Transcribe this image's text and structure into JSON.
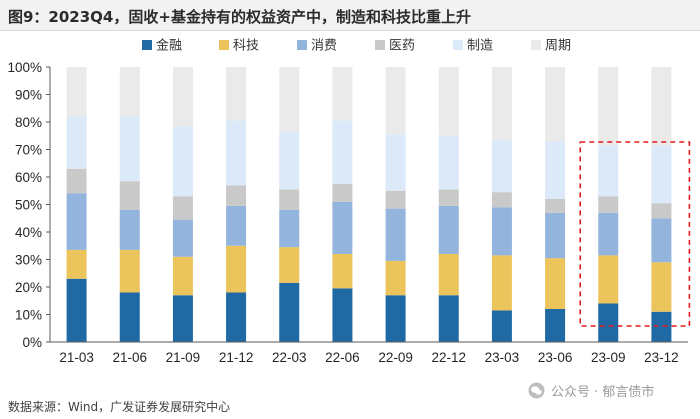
{
  "figure": {
    "title": "图9：2023Q4，固收+基金持有的权益资产中，制造和科技比重上升",
    "source": "数据来源：Wind，广发证券发展研究中心",
    "watermark": "公众号 · 郁言债市"
  },
  "chart_data": {
    "type": "bar",
    "stacked": true,
    "title": "2023Q4，固收+基金持有的权益资产中，制造和科技比重上升",
    "xlabel": "",
    "ylabel": "",
    "ylim": [
      0,
      100
    ],
    "yticks": [
      0,
      10,
      20,
      30,
      40,
      50,
      60,
      70,
      80,
      90,
      100
    ],
    "ytick_labels": [
      "0%",
      "10%",
      "20%",
      "30%",
      "40%",
      "50%",
      "60%",
      "70%",
      "80%",
      "90%",
      "100%"
    ],
    "grid": false,
    "legend_position": "top",
    "categories": [
      "21-03",
      "21-06",
      "21-09",
      "21-12",
      "22-03",
      "22-06",
      "22-09",
      "22-12",
      "23-03",
      "23-06",
      "23-09",
      "23-12"
    ],
    "series": [
      {
        "name": "金融",
        "color": "#1f6aa5",
        "values": [
          23,
          18,
          17,
          18,
          21.5,
          19.5,
          17,
          17,
          11.5,
          12,
          14,
          11
        ]
      },
      {
        "name": "科技",
        "color": "#ecc45c",
        "values": [
          10.5,
          15.5,
          14,
          17,
          13,
          12.5,
          12.5,
          15,
          20,
          18.5,
          17.5,
          18
        ]
      },
      {
        "name": "消费",
        "color": "#93b4dc",
        "values": [
          20.5,
          14.5,
          13.5,
          14.5,
          13.5,
          19,
          19,
          17.5,
          17.5,
          16.5,
          15.5,
          16
        ]
      },
      {
        "name": "医药",
        "color": "#c9c9c9",
        "values": [
          9,
          10.5,
          8.5,
          7.5,
          7.5,
          6.5,
          6.5,
          6,
          5.5,
          5,
          6,
          5.5
        ]
      },
      {
        "name": "制造",
        "color": "#dbe9f8",
        "values": [
          19,
          23.5,
          25.5,
          23.5,
          21,
          23,
          20.5,
          19.5,
          19,
          21,
          18.5,
          21
        ]
      },
      {
        "name": "周期",
        "color": "#eaeaea",
        "values": [
          18,
          18,
          21.5,
          19.5,
          23.5,
          19.5,
          24.5,
          25,
          26.5,
          27,
          28.5,
          28.5
        ]
      }
    ],
    "annotations": [
      {
        "type": "dashed-box",
        "color": "#e31a1c",
        "categories": [
          "23-09",
          "23-12"
        ]
      }
    ]
  }
}
